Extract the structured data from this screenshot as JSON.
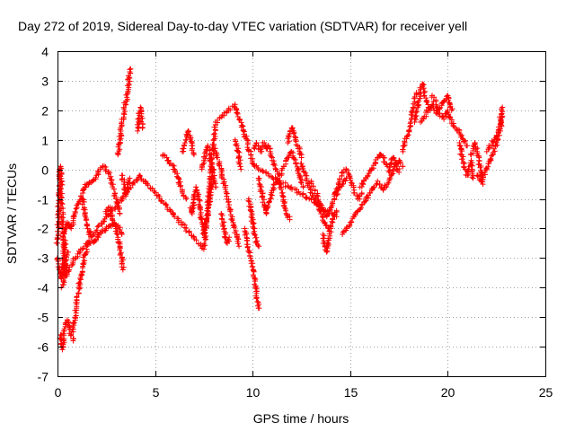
{
  "chart_data": {
    "type": "scatter",
    "title": "Day 272 of 2019, Sidereal Day-to-day VTEC variation (SDTVAR) for receiver yell",
    "xlabel": "GPS time / hours",
    "ylabel": "SDTVAR / TECUs",
    "xlim": [
      0,
      25
    ],
    "ylim": [
      -7,
      4
    ],
    "xticks": [
      0,
      5,
      10,
      15,
      20,
      25
    ],
    "yticks": [
      -7,
      -6,
      -5,
      -4,
      -3,
      -2,
      -1,
      0,
      1,
      2,
      3,
      4
    ],
    "grid": true,
    "marker": "+",
    "color": "#ff0000",
    "series": [
      {
        "name": "SDTVAR",
        "segments": [
          {
            "x": [
              0.0,
              0.05,
              0.1,
              0.15,
              0.2,
              0.25,
              0.3,
              0.35,
              0.4,
              0.45,
              0.5
            ],
            "y": [
              -2.5,
              -1.5,
              -0.3,
              0.1,
              -0.5,
              -1.8,
              -2.6,
              -3.2,
              -3.6,
              -3.3,
              -2.8
            ]
          },
          {
            "x": [
              0.0,
              0.05,
              0.1,
              0.15,
              0.2,
              0.25,
              0.3,
              0.35,
              0.4
            ],
            "y": [
              -3.0,
              -3.2,
              -3.4,
              -3.6,
              -3.7,
              -3.3,
              -3.0,
              -2.7,
              -2.4
            ]
          },
          {
            "x": [
              0.15,
              0.2,
              0.25,
              0.3,
              0.35,
              0.4,
              0.5,
              0.6,
              0.7,
              0.8
            ],
            "y": [
              -5.6,
              -5.9,
              -6.1,
              -5.8,
              -5.4,
              -5.2,
              -5.1,
              -5.4,
              -5.6,
              -5.8
            ]
          },
          {
            "x": [
              0.8,
              0.9,
              1.0,
              1.1,
              1.2,
              1.3,
              1.4,
              1.5
            ],
            "y": [
              -5.5,
              -5.0,
              -4.5,
              -4.0,
              -3.6,
              -3.2,
              -2.9,
              -2.7
            ]
          },
          {
            "x": [
              0.3,
              0.4,
              0.5,
              0.6,
              0.7,
              0.8,
              0.9,
              1.0,
              1.1,
              1.2,
              1.3,
              1.4,
              1.5,
              1.6,
              1.7
            ],
            "y": [
              -2.3,
              -2.0,
              -1.8,
              -1.9,
              -2.0,
              -1.8,
              -1.5,
              -1.3,
              -1.1,
              -0.9,
              -1.1,
              -1.5,
              -1.9,
              -2.2,
              -2.1
            ]
          },
          {
            "x": [
              1.3,
              1.4,
              1.5,
              1.6,
              1.8,
              2.0,
              2.2,
              2.4,
              2.6,
              2.8,
              3.0,
              3.2
            ],
            "y": [
              -0.8,
              -0.6,
              -0.5,
              -0.5,
              -0.4,
              -0.2,
              0.0,
              0.1,
              -0.1,
              -0.5,
              -1.0,
              -1.5
            ]
          },
          {
            "x": [
              1.5,
              1.7,
              1.9,
              2.1,
              2.3,
              2.5,
              2.7,
              2.9,
              3.1,
              3.3
            ],
            "y": [
              -2.6,
              -2.5,
              -2.4,
              -2.3,
              -2.1,
              -2.0,
              -1.9,
              -1.8,
              -1.9,
              -2.2
            ]
          },
          {
            "x": [
              2.5,
              2.6,
              2.7,
              2.8,
              2.9,
              3.0,
              3.1,
              3.2,
              3.3,
              3.35
            ],
            "y": [
              -1.5,
              -1.3,
              -1.4,
              -1.6,
              -1.8,
              -2.0,
              -2.3,
              -2.6,
              -3.0,
              -3.4
            ]
          },
          {
            "x": [
              3.1,
              3.2,
              3.3,
              3.4,
              3.5,
              3.6,
              3.65,
              3.7,
              3.75
            ],
            "y": [
              0.5,
              1.0,
              1.5,
              1.9,
              2.3,
              2.6,
              2.9,
              3.3,
              3.4
            ]
          },
          {
            "x": [
              3.3,
              3.4,
              3.5,
              3.6,
              3.7
            ],
            "y": [
              -0.2,
              -0.5,
              -0.9,
              -0.6,
              -0.3
            ]
          },
          {
            "x": [
              4.1,
              4.15,
              4.2,
              4.25,
              4.3,
              4.35
            ],
            "y": [
              1.3,
              1.6,
              1.9,
              2.1,
              1.8,
              1.4
            ]
          },
          {
            "x": [
              5.4,
              5.6,
              5.8,
              6.0,
              6.2,
              6.4,
              6.6
            ],
            "y": [
              0.5,
              0.4,
              0.2,
              0.0,
              -0.3,
              -0.8,
              -1.0
            ]
          },
          {
            "x": [
              6.4,
              6.5,
              6.6,
              6.7,
              6.8,
              6.9,
              7.0
            ],
            "y": [
              0.6,
              0.8,
              1.0,
              1.3,
              1.0,
              0.7,
              0.5
            ]
          },
          {
            "x": [
              6.8,
              6.9,
              7.0,
              7.1,
              7.2,
              7.3,
              7.4,
              7.5,
              7.6,
              7.7,
              7.8,
              7.9,
              8.0
            ],
            "y": [
              -1.3,
              -1.5,
              -1.0,
              -0.6,
              -0.9,
              -1.3,
              -1.8,
              -2.2,
              -1.9,
              -1.5,
              -1.0,
              -0.5,
              0.0
            ]
          },
          {
            "x": [
              7.4,
              7.5,
              7.6,
              7.7,
              7.8,
              7.9,
              8.0,
              8.1
            ],
            "y": [
              0.0,
              0.3,
              0.6,
              0.8,
              0.5,
              0.1,
              -0.3,
              -0.6
            ]
          },
          {
            "x": [
              8.0,
              8.2,
              8.4,
              8.6,
              8.8,
              9.0,
              9.2,
              9.3
            ],
            "y": [
              0.8,
              0.4,
              -0.1,
              -0.6,
              -1.2,
              -1.8,
              -2.3,
              -2.6
            ]
          },
          {
            "x": [
              8.4,
              8.5,
              8.6,
              8.7,
              8.8
            ],
            "y": [
              -1.5,
              -1.9,
              -2.2,
              -2.5,
              -2.3
            ]
          },
          {
            "x": [
              9.1,
              9.2,
              9.3,
              9.4
            ],
            "y": [
              1.0,
              0.8,
              0.4,
              0.0
            ]
          },
          {
            "x": [
              9.6,
              9.7,
              9.8,
              9.9,
              10.0,
              10.1,
              10.2,
              10.3
            ],
            "y": [
              -2.0,
              -2.4,
              -2.8,
              -3.0,
              -3.3,
              -3.7,
              -4.2,
              -4.7
            ]
          },
          {
            "x": [
              9.8,
              9.9,
              10.0,
              10.1,
              10.2,
              10.3
            ],
            "y": [
              -1.0,
              -1.4,
              -1.8,
              -2.2,
              -2.5,
              -2.6
            ]
          },
          {
            "x": [
              10.1,
              10.2,
              10.3,
              10.4,
              10.5,
              10.6,
              10.7,
              10.8,
              10.9,
              11.0
            ],
            "y": [
              0.7,
              0.9,
              0.8,
              0.6,
              0.8,
              0.9,
              0.7,
              0.8,
              0.6,
              0.4
            ]
          },
          {
            "x": [
              10.3,
              10.5,
              10.7,
              10.9,
              11.1,
              11.3,
              11.5,
              11.7,
              11.9
            ],
            "y": [
              -0.3,
              -0.9,
              -1.5,
              -1.0,
              -0.5,
              -0.3,
              -0.8,
              -1.4,
              -1.7
            ]
          },
          {
            "x": [
              11.0,
              11.2,
              11.4,
              11.6,
              11.8,
              12.0,
              12.2,
              12.4,
              12.6
            ],
            "y": [
              0.3,
              0.0,
              -0.2,
              0.1,
              0.4,
              0.6,
              0.2,
              -0.2,
              -0.6
            ]
          },
          {
            "x": [
              11.8,
              11.9,
              12.0,
              12.1,
              12.2,
              12.3,
              12.4,
              12.5
            ],
            "y": [
              0.9,
              1.2,
              1.4,
              1.3,
              1.0,
              0.8,
              0.6,
              0.4
            ]
          },
          {
            "x": [
              12.5,
              12.7,
              12.9,
              13.1,
              13.3,
              13.5,
              13.7,
              13.9,
              14.1,
              14.3
            ],
            "y": [
              0.2,
              -0.2,
              -0.6,
              -0.9,
              -1.2,
              -1.5,
              -1.8,
              -2.0,
              -1.7,
              -1.4
            ]
          },
          {
            "x": [
              13.0,
              13.2,
              13.4,
              13.6,
              13.8,
              14.0,
              14.2,
              14.4,
              14.6,
              14.8
            ],
            "y": [
              -0.4,
              -0.7,
              -1.1,
              -1.4,
              -1.6,
              -1.3,
              -1.0,
              -0.7,
              -0.5,
              -0.3
            ]
          },
          {
            "x": [
              13.6,
              13.7,
              13.8,
              13.9,
              14.0
            ],
            "y": [
              -2.2,
              -2.6,
              -2.8,
              -2.4,
              -2.0
            ]
          },
          {
            "x": [
              14.2,
              14.4,
              14.6,
              14.8,
              15.0,
              15.2,
              15.4,
              15.6
            ],
            "y": [
              -0.9,
              -0.5,
              -0.1,
              0.0,
              -0.3,
              -0.7,
              -1.0,
              -0.8
            ]
          },
          {
            "x": [
              14.6,
              14.8,
              15.0,
              15.2,
              15.4,
              15.6,
              15.8,
              16.0,
              16.2,
              16.4
            ],
            "y": [
              -2.2,
              -2.0,
              -1.8,
              -1.6,
              -1.4,
              -1.2,
              -1.0,
              -0.8,
              -0.6,
              -0.4
            ]
          },
          {
            "x": [
              15.5,
              15.7,
              15.9,
              16.1,
              16.3,
              16.5,
              16.7,
              16.9
            ],
            "y": [
              -0.6,
              -0.4,
              -0.2,
              0.0,
              0.2,
              0.5,
              0.4,
              0.1
            ]
          },
          {
            "x": [
              16.5,
              16.7,
              16.9,
              17.1,
              17.3,
              17.5,
              17.7
            ],
            "y": [
              -0.5,
              -0.7,
              -0.5,
              -0.2,
              0.1,
              0.3,
              0.1
            ]
          },
          {
            "x": [
              17.0,
              17.1,
              17.2,
              17.3,
              17.4,
              17.5
            ],
            "y": [
              -0.1,
              0.2,
              0.4,
              0.3,
              0.1,
              -0.1
            ]
          },
          {
            "x": [
              17.7,
              17.8,
              17.9,
              18.0,
              18.1,
              18.2,
              18.3,
              18.4
            ],
            "y": [
              0.6,
              0.9,
              1.1,
              1.3,
              1.6,
              2.0,
              2.4,
              2.6
            ]
          },
          {
            "x": [
              18.3,
              18.4,
              18.5,
              18.6,
              18.7,
              18.8,
              18.9,
              19.0,
              19.1
            ],
            "y": [
              1.6,
              2.0,
              2.3,
              2.7,
              2.9,
              2.6,
              2.3,
              2.1,
              2.0
            ]
          },
          {
            "x": [
              18.6,
              18.8,
              19.0,
              19.2,
              19.4,
              19.6,
              19.8,
              20.0,
              20.2
            ],
            "y": [
              1.6,
              1.8,
              2.0,
              2.2,
              1.9,
              2.1,
              2.3,
              2.5,
              2.0
            ]
          },
          {
            "x": [
              19.2,
              19.4,
              19.6,
              19.8,
              20.0,
              20.2,
              20.4,
              20.6,
              20.8,
              21.0
            ],
            "y": [
              2.5,
              2.2,
              1.8,
              1.7,
              2.0,
              1.6,
              1.4,
              1.3,
              1.0,
              0.8
            ]
          },
          {
            "x": [
              20.6,
              20.7,
              20.8,
              20.9,
              21.0,
              21.1,
              21.2,
              21.3
            ],
            "y": [
              0.9,
              0.5,
              0.2,
              0.0,
              -0.2,
              0.1,
              0.3,
              -0.3
            ]
          },
          {
            "x": [
              21.2,
              21.3,
              21.4,
              21.5,
              21.6,
              21.7,
              21.8
            ],
            "y": [
              0.5,
              0.7,
              0.9,
              0.6,
              0.3,
              -0.1,
              -0.5
            ]
          },
          {
            "x": [
              21.5,
              21.7,
              21.9,
              22.1,
              22.3,
              22.5,
              22.7,
              22.8
            ],
            "y": [
              -0.2,
              -0.4,
              -0.1,
              0.2,
              0.5,
              0.9,
              1.3,
              1.8
            ]
          },
          {
            "x": [
              22.0,
              22.2,
              22.4,
              22.6,
              22.7,
              22.8
            ],
            "y": [
              0.6,
              0.8,
              1.0,
              1.3,
              1.7,
              2.1
            ]
          },
          {
            "x": [
              0.2,
              0.8,
              4.2,
              7.5,
              8.1,
              9.1,
              10.1,
              12.9,
              14.3
            ],
            "y": [
              -4.0,
              -3.1,
              -0.2,
              -2.7,
              1.6,
              2.2,
              0.1,
              -1.0,
              -1.6
            ]
          }
        ]
      }
    ]
  }
}
